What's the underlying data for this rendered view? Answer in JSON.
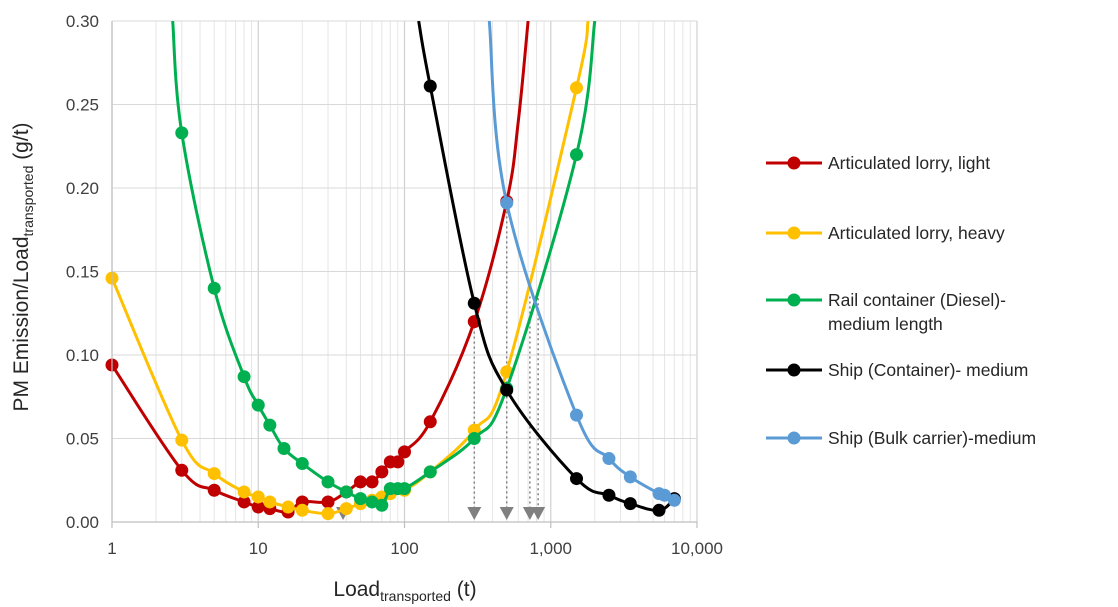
{
  "chart_data": {
    "type": "line",
    "xlabel": {
      "main": "Load",
      "sub": "transported",
      "unit": " (t)"
    },
    "ylabel": {
      "main": "PM Emission/Load",
      "sub": "transported",
      "unit": " (g/t)"
    },
    "xscale": "log",
    "xlim": [
      1,
      10000
    ],
    "ylim": [
      0,
      0.3
    ],
    "x_ticks": [
      1,
      10,
      100,
      1000,
      10000
    ],
    "x_tick_labels": [
      "1",
      "10",
      "100",
      "1,000",
      "10,000"
    ],
    "y_ticks": [
      0,
      0.05,
      0.1,
      0.15,
      0.2,
      0.25,
      0.3
    ],
    "y_tick_labels": [
      "0.00",
      "0.05",
      "0.10",
      "0.15",
      "0.20",
      "0.25",
      "0.30"
    ],
    "grid": true,
    "legend_position": "right",
    "series": [
      {
        "name": "Articulated lorry, light",
        "color": "#C00000",
        "points": [
          [
            1,
            0.094
          ],
          [
            3,
            0.031
          ],
          [
            5,
            0.019
          ],
          [
            8,
            0.012
          ],
          [
            10,
            0.009
          ],
          [
            12,
            0.008
          ],
          [
            16,
            0.006
          ],
          [
            20,
            0.012
          ],
          [
            30,
            0.012
          ],
          [
            40,
            0.018
          ],
          [
            50,
            0.024
          ],
          [
            60,
            0.024
          ],
          [
            70,
            0.03
          ],
          [
            80,
            0.036
          ],
          [
            90,
            0.036
          ],
          [
            100,
            0.042
          ],
          [
            150,
            0.06
          ],
          [
            300,
            0.12
          ],
          [
            500,
            0.192
          ]
        ],
        "curve_extension": [
          [
            600,
            0.24
          ],
          [
            700,
            0.3
          ]
        ]
      },
      {
        "name": "Articulated lorry, heavy",
        "color": "#FFC000",
        "points": [
          [
            1,
            0.146
          ],
          [
            3,
            0.049
          ],
          [
            5,
            0.029
          ],
          [
            8,
            0.018
          ],
          [
            10,
            0.015
          ],
          [
            12,
            0.012
          ],
          [
            16,
            0.009
          ],
          [
            20,
            0.007
          ],
          [
            30,
            0.005
          ],
          [
            40,
            0.008
          ],
          [
            50,
            0.011
          ],
          [
            60,
            0.013
          ],
          [
            70,
            0.015
          ],
          [
            80,
            0.017
          ],
          [
            100,
            0.019
          ],
          [
            150,
            0.03
          ],
          [
            300,
            0.055
          ],
          [
            500,
            0.09
          ],
          [
            1500,
            0.26
          ]
        ],
        "curve_extension": [
          [
            1800,
            0.3
          ]
        ]
      },
      {
        "name": "Rail container (Diesel)-medium length",
        "name_lines": [
          "Rail container (Diesel)-",
          "medium length"
        ],
        "color": "#00B050",
        "points": [
          [
            3,
            0.233
          ],
          [
            5,
            0.14
          ],
          [
            8,
            0.087
          ],
          [
            10,
            0.07
          ],
          [
            12,
            0.058
          ],
          [
            15,
            0.044
          ],
          [
            20,
            0.035
          ],
          [
            30,
            0.024
          ],
          [
            40,
            0.018
          ],
          [
            50,
            0.014
          ],
          [
            60,
            0.012
          ],
          [
            70,
            0.01
          ],
          [
            80,
            0.02
          ],
          [
            90,
            0.02
          ],
          [
            100,
            0.02
          ],
          [
            150,
            0.03
          ],
          [
            300,
            0.05
          ],
          [
            500,
            0.08
          ],
          [
            1500,
            0.22
          ]
        ],
        "curve_extension": [
          [
            2.6,
            0.3
          ],
          [
            2000,
            0.3
          ]
        ]
      },
      {
        "name": "Ship (Container)- medium",
        "color": "#000000",
        "points": [
          [
            150,
            0.261
          ],
          [
            300,
            0.131
          ],
          [
            500,
            0.079
          ],
          [
            1500,
            0.026
          ],
          [
            2500,
            0.016
          ],
          [
            3500,
            0.011
          ],
          [
            5500,
            0.007
          ],
          [
            7000,
            0.014
          ]
        ],
        "curve_extension": [
          [
            125,
            0.3
          ]
        ]
      },
      {
        "name": "Ship (Bulk carrier)-medium",
        "color": "#5B9BD5",
        "points": [
          [
            500,
            0.191
          ],
          [
            1500,
            0.064
          ],
          [
            2500,
            0.038
          ],
          [
            3500,
            0.027
          ],
          [
            5500,
            0.017
          ],
          [
            6000,
            0.016
          ],
          [
            7000,
            0.013
          ]
        ],
        "curve_extension": [
          [
            380,
            0.3
          ]
        ]
      }
    ],
    "reference_markers": {
      "color": "#808080",
      "x": [
        38,
        300,
        500,
        720,
        820
      ],
      "dotted_line_tops": [
        0.12,
        0.192,
        0.135,
        0.137
      ]
    }
  }
}
